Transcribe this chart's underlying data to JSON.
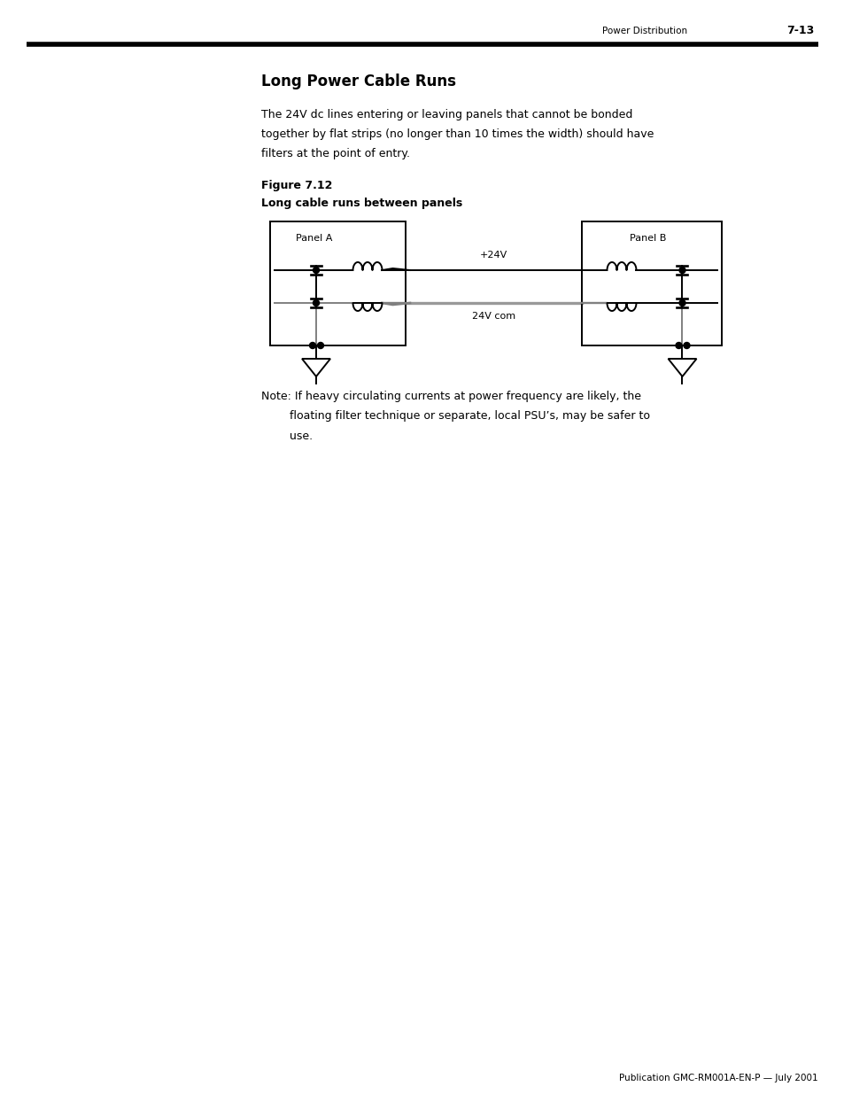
{
  "page_header_left": "Power Distribution",
  "page_header_right": "7-13",
  "title": "Long Power Cable Runs",
  "body_line1": "The 24V dc lines entering or leaving panels that cannot be bonded",
  "body_line2": "together by flat strips (no longer than 10 times the width) should have",
  "body_line3": "filters at the point of entry.",
  "figure_label": "Figure 7.12",
  "figure_caption": "Long cable runs between panels",
  "panel_a_label": "Panel A",
  "panel_b_label": "Panel B",
  "label_24v_pos": "+24V",
  "label_24v_com": "24V com",
  "note_line1": "Note: If heavy circulating currents at power frequency are likely, the",
  "note_line2": "        floating filter technique or separate, local PSU’s, may be safer to",
  "note_line3": "        use.",
  "footer_text": "Publication GMC-RM001A-EN-P — July 2001",
  "bg_color": "#ffffff"
}
